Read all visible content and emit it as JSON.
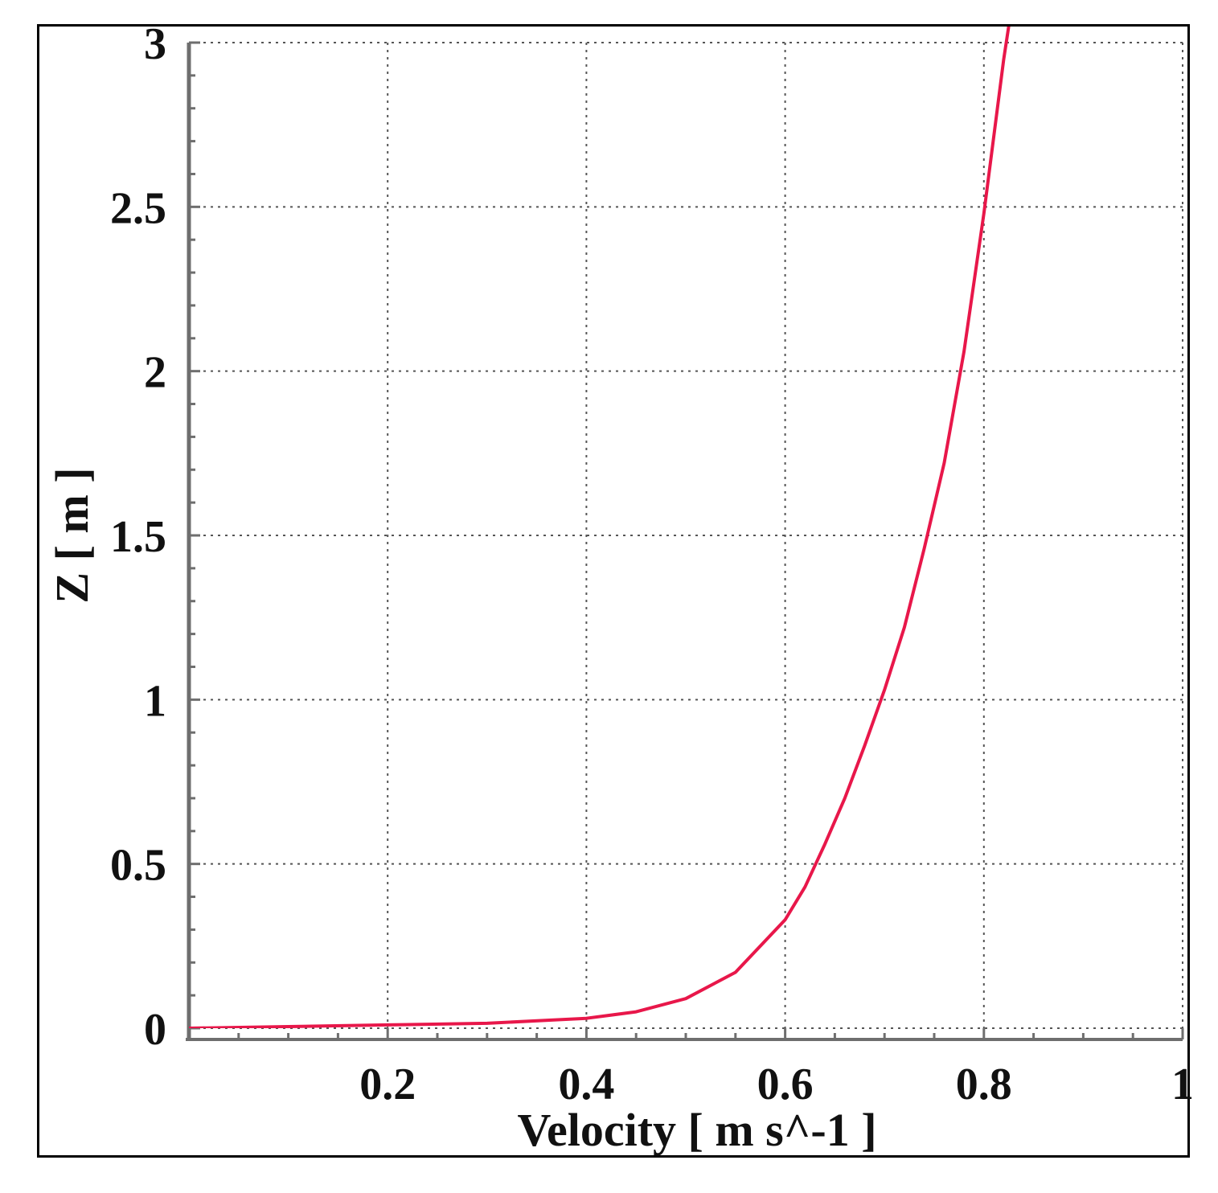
{
  "chart_data": {
    "type": "line",
    "title": "",
    "xlabel": "Velocity [ m s^-1 ]",
    "ylabel": "Z [ m ]",
    "xlim": [
      0,
      1
    ],
    "ylim": [
      0,
      3
    ],
    "x_ticks": [
      0.2,
      0.4,
      0.6,
      0.8,
      1
    ],
    "x_tick_labels": [
      "0.2",
      "0.4",
      "0.6",
      "0.8",
      "1"
    ],
    "y_ticks": [
      0,
      0.5,
      1,
      1.5,
      2,
      2.5,
      3
    ],
    "y_tick_labels": [
      "0",
      "0.5",
      "1",
      "1.5",
      "2",
      "2.5",
      "3"
    ],
    "grid": true,
    "series": [
      {
        "color": "#e8174a",
        "points": [
          [
            0.0,
            0.0
          ],
          [
            0.1,
            0.005
          ],
          [
            0.2,
            0.01
          ],
          [
            0.3,
            0.015
          ],
          [
            0.4,
            0.03
          ],
          [
            0.45,
            0.05
          ],
          [
            0.5,
            0.09
          ],
          [
            0.55,
            0.17
          ],
          [
            0.6,
            0.33
          ],
          [
            0.62,
            0.43
          ],
          [
            0.64,
            0.56
          ],
          [
            0.66,
            0.7
          ],
          [
            0.68,
            0.86
          ],
          [
            0.7,
            1.03
          ],
          [
            0.72,
            1.22
          ],
          [
            0.74,
            1.46
          ],
          [
            0.76,
            1.72
          ],
          [
            0.78,
            2.06
          ],
          [
            0.8,
            2.48
          ],
          [
            0.82,
            2.95
          ],
          [
            0.825,
            3.05
          ]
        ]
      }
    ]
  }
}
